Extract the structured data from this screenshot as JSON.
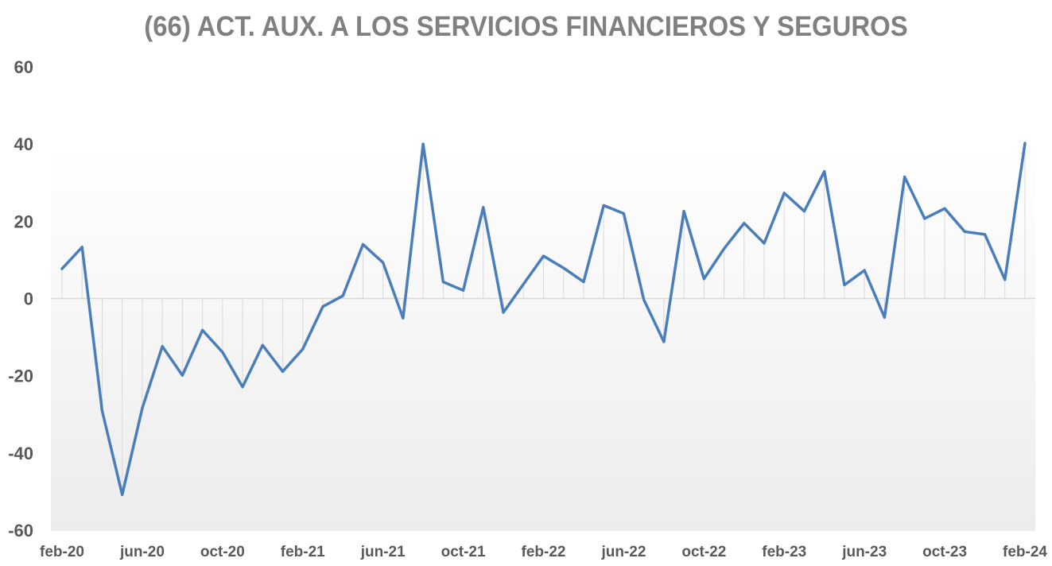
{
  "chart_data": {
    "type": "line",
    "title": "(66) ACT. AUX. A LOS SERVICIOS FINANCIEROS Y SEGUROS",
    "xlabel": "",
    "ylabel": "",
    "ylim": [
      -60,
      60
    ],
    "yticks": [
      "60",
      "40",
      "20",
      "0",
      "-20",
      "-40",
      "-60"
    ],
    "xtick_labels": [
      "feb-20",
      "jun-20",
      "oct-20",
      "feb-21",
      "jun-21",
      "oct-21",
      "feb-22",
      "jun-22",
      "oct-22",
      "feb-23",
      "jun-23",
      "oct-23",
      "feb-24"
    ],
    "x": [
      "feb-20",
      "mar-20",
      "apr-20",
      "may-20",
      "jun-20",
      "jul-20",
      "aug-20",
      "sep-20",
      "oct-20",
      "nov-20",
      "dec-20",
      "jan-21",
      "feb-21",
      "mar-21",
      "apr-21",
      "may-21",
      "jun-21",
      "jul-21",
      "aug-21",
      "sep-21",
      "oct-21",
      "nov-21",
      "dec-21",
      "jan-22",
      "feb-22",
      "mar-22",
      "apr-22",
      "may-22",
      "jun-22",
      "jul-22",
      "aug-22",
      "sep-22",
      "oct-22",
      "nov-22",
      "dec-22",
      "jan-23",
      "feb-23",
      "mar-23",
      "apr-23",
      "may-23",
      "jun-23",
      "jul-23",
      "aug-23",
      "sep-23",
      "oct-23",
      "nov-23",
      "dec-23",
      "jan-24",
      "feb-24"
    ],
    "values": [
      7.7,
      13.3,
      -29.1,
      -50.8,
      -28.4,
      -12.4,
      -19.9,
      -8.2,
      -13.9,
      -22.9,
      -12.1,
      -18.9,
      -13.1,
      -2.1,
      0.7,
      14.0,
      9.3,
      -5.1,
      40.0,
      4.3,
      2.1,
      23.6,
      -3.6,
      3.7,
      11.0,
      7.9,
      4.3,
      24.1,
      22.0,
      -0.3,
      -11.2,
      22.6,
      5.1,
      12.9,
      19.5,
      14.3,
      27.3,
      22.6,
      32.9,
      3.5,
      7.3,
      -4.9,
      31.5,
      20.7,
      23.3,
      17.3,
      16.6,
      4.9,
      40.2
    ],
    "grid": "vertical drop lines",
    "legend": "none",
    "colors": {
      "line": "#4a7ebb",
      "dropline": "#d9d9d9",
      "axis": "#d9d9d9",
      "title": "#808080",
      "ticks": "#595959"
    }
  }
}
